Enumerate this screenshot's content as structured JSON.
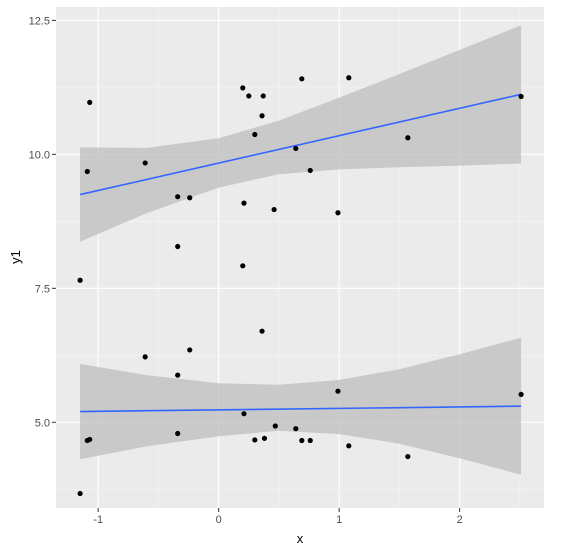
{
  "chart_data": {
    "type": "scatter",
    "title": "",
    "xlabel": "x",
    "ylabel": "y1",
    "xlim": [
      -1.35,
      2.7
    ],
    "ylim": [
      3.4,
      12.75
    ],
    "x_ticks": [
      -1,
      0,
      1,
      2
    ],
    "x_tick_labels": [
      "-1",
      "0",
      "1",
      "2"
    ],
    "y_ticks": [
      5.0,
      7.5,
      10.0,
      12.5
    ],
    "y_tick_labels": [
      "5.0",
      "7.5",
      "10.0",
      "12.5"
    ],
    "grid": true,
    "legend": "none",
    "colors": {
      "panel_background": "#ebebeb",
      "grid_major": "#ffffff",
      "grid_minor": "#f5f5f5",
      "point": "#000000",
      "line": "#3366ff",
      "ribbon": "#bdbdbd"
    },
    "series": [
      {
        "points": [
          [
            -1.15,
            7.65
          ],
          [
            -1.09,
            9.68
          ],
          [
            -1.07,
            10.97
          ],
          [
            -0.61,
            9.84
          ],
          [
            -0.34,
            9.21
          ],
          [
            -0.34,
            8.28
          ],
          [
            -0.24,
            9.19
          ],
          [
            0.2,
            11.24
          ],
          [
            0.21,
            9.09
          ],
          [
            0.25,
            11.09
          ],
          [
            0.3,
            10.37
          ],
          [
            0.36,
            10.72
          ],
          [
            0.37,
            11.09
          ],
          [
            0.46,
            8.97
          ],
          [
            0.64,
            10.11
          ],
          [
            0.69,
            11.41
          ],
          [
            0.76,
            9.7
          ],
          [
            0.99,
            8.91
          ],
          [
            1.08,
            11.43
          ],
          [
            1.57,
            10.31
          ],
          [
            2.51,
            11.08
          ]
        ],
        "fit": {
          "x": [
            -1.15,
            2.51
          ],
          "y": [
            9.25,
            11.12
          ]
        },
        "band": {
          "x": [
            -1.15,
            -0.6,
            0.0,
            0.5,
            1.0,
            1.5,
            2.0,
            2.51
          ],
          "lower": [
            8.37,
            8.9,
            9.38,
            9.63,
            9.72,
            9.76,
            9.79,
            9.83
          ],
          "upper": [
            10.13,
            10.12,
            10.3,
            10.63,
            11.06,
            11.5,
            11.95,
            12.41
          ]
        }
      },
      {
        "points": [
          [
            -1.15,
            3.67
          ],
          [
            -1.09,
            4.66
          ],
          [
            -1.07,
            4.68
          ],
          [
            -0.61,
            6.22
          ],
          [
            -0.34,
            5.88
          ],
          [
            -0.34,
            4.79
          ],
          [
            -0.24,
            6.35
          ],
          [
            0.2,
            7.92
          ],
          [
            0.21,
            5.16
          ],
          [
            0.3,
            4.67
          ],
          [
            0.36,
            6.7
          ],
          [
            0.38,
            4.7
          ],
          [
            0.47,
            4.93
          ],
          [
            0.64,
            4.88
          ],
          [
            0.69,
            4.66
          ],
          [
            0.76,
            4.66
          ],
          [
            0.99,
            5.58
          ],
          [
            1.08,
            4.56
          ],
          [
            1.57,
            4.36
          ],
          [
            2.51,
            5.52
          ]
        ],
        "fit": {
          "x": [
            -1.15,
            2.51
          ],
          "y": [
            5.2,
            5.3
          ]
        },
        "band": {
          "x": [
            -1.15,
            -0.6,
            0.0,
            0.5,
            1.0,
            1.5,
            2.0,
            2.51
          ],
          "lower": [
            4.31,
            4.55,
            4.74,
            4.84,
            4.78,
            4.6,
            4.33,
            4.02
          ],
          "upper": [
            6.09,
            5.88,
            5.73,
            5.7,
            5.79,
            5.99,
            6.27,
            6.58
          ]
        }
      }
    ]
  }
}
